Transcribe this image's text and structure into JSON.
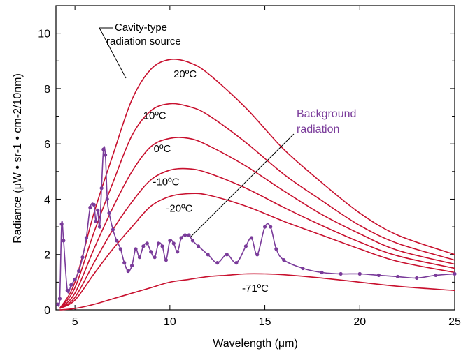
{
  "chart_data": {
    "type": "line",
    "xlabel": "Wavelength (μm)",
    "ylabel": "Radiance (μW • sr-1 • cm-2/10nm)",
    "xlim": [
      4,
      25
    ],
    "ylim": [
      0,
      11
    ],
    "xticks": [
      5,
      10,
      15,
      20,
      25
    ],
    "yticks": [
      0,
      2,
      4,
      6,
      8,
      10
    ],
    "xtick_labels": [
      "5",
      "10",
      "15",
      "20",
      "25"
    ],
    "ytick_labels": [
      "0",
      "2",
      "4",
      "6",
      "8",
      "10"
    ],
    "grid": false,
    "colors": {
      "cavity": "#c8102e",
      "background": "#7a3b9a"
    },
    "annotations": {
      "cavity_source": [
        "Cavity-type",
        "radiation source"
      ],
      "background": [
        "Background",
        "radiation"
      ]
    },
    "series": [
      {
        "label": "20ºC",
        "x": [
          4.2,
          5,
          6,
          7,
          8,
          9,
          10,
          11,
          12,
          14,
          16,
          18,
          20,
          22,
          25
        ],
        "y": [
          0.05,
          1.0,
          3.5,
          5.6,
          7.6,
          8.7,
          9.05,
          8.95,
          8.55,
          7.3,
          5.8,
          4.6,
          3.5,
          2.7,
          2.0
        ]
      },
      {
        "label": "10ºC",
        "x": [
          4.2,
          5,
          6,
          7,
          8,
          9,
          10,
          11,
          12,
          14,
          16,
          18,
          20,
          22,
          25
        ],
        "y": [
          0.05,
          0.8,
          2.8,
          4.6,
          6.3,
          7.2,
          7.45,
          7.35,
          7.05,
          6.05,
          4.9,
          3.95,
          3.05,
          2.4,
          1.8
        ]
      },
      {
        "label": "0ºC",
        "x": [
          4.2,
          5,
          6,
          7,
          8,
          9,
          10,
          11,
          12,
          14,
          16,
          18,
          20,
          22,
          25
        ],
        "y": [
          0.05,
          0.6,
          2.2,
          3.7,
          5.0,
          5.9,
          6.2,
          6.2,
          5.95,
          5.2,
          4.3,
          3.45,
          2.75,
          2.15,
          1.65
        ]
      },
      {
        "label": "-10ºC",
        "x": [
          4.2,
          5,
          6,
          7,
          8,
          9,
          10,
          11,
          12,
          14,
          16,
          18,
          20,
          22,
          25
        ],
        "y": [
          0.05,
          0.45,
          1.7,
          2.9,
          3.9,
          4.7,
          5.05,
          5.1,
          4.95,
          4.4,
          3.7,
          3.05,
          2.45,
          1.95,
          1.5
        ]
      },
      {
        "label": "-20ºC",
        "x": [
          4.2,
          5,
          6,
          7,
          8,
          9,
          10,
          11,
          12,
          14,
          16,
          18,
          20,
          22,
          25
        ],
        "y": [
          0.05,
          0.35,
          1.3,
          2.2,
          3.0,
          3.75,
          4.1,
          4.2,
          4.15,
          3.75,
          3.2,
          2.7,
          2.2,
          1.75,
          1.35
        ]
      },
      {
        "label": "-71ºC",
        "x": [
          4.2,
          5,
          6,
          7,
          8,
          9,
          10,
          11,
          12,
          13,
          14,
          15,
          16,
          18,
          20,
          22,
          25
        ],
        "y": [
          0.0,
          0.05,
          0.2,
          0.4,
          0.6,
          0.8,
          1.0,
          1.1,
          1.2,
          1.25,
          1.3,
          1.3,
          1.27,
          1.15,
          1.0,
          0.85,
          0.7
        ]
      },
      {
        "label": "Background radiation",
        "x": [
          4.1,
          4.2,
          4.3,
          4.4,
          4.6,
          4.8,
          5.0,
          5.2,
          5.4,
          5.6,
          5.8,
          6.0,
          6.1,
          6.2,
          6.3,
          6.4,
          6.5,
          6.6,
          6.7,
          6.8,
          7.0,
          7.2,
          7.4,
          7.6,
          7.8,
          8.0,
          8.2,
          8.4,
          8.6,
          8.8,
          9.0,
          9.2,
          9.4,
          9.6,
          9.8,
          10.0,
          10.2,
          10.4,
          10.6,
          10.8,
          11.0,
          11.2,
          11.5,
          12.0,
          12.5,
          13.0,
          13.5,
          14.0,
          14.3,
          14.6,
          15.0,
          15.3,
          15.6,
          16.0,
          17.0,
          18.0,
          19.0,
          20.0,
          21.0,
          22.0,
          23.0,
          24.0,
          25.0
        ],
        "y": [
          0.2,
          0.4,
          3.1,
          2.5,
          0.7,
          0.9,
          1.1,
          1.4,
          1.9,
          2.6,
          3.7,
          3.8,
          3.2,
          3.6,
          3.0,
          4.4,
          5.8,
          5.6,
          4.0,
          3.5,
          2.9,
          2.5,
          2.2,
          1.7,
          1.4,
          1.6,
          2.2,
          1.9,
          2.3,
          2.4,
          2.1,
          1.9,
          2.4,
          2.3,
          1.8,
          2.5,
          2.4,
          2.1,
          2.6,
          2.7,
          2.7,
          2.5,
          2.3,
          2.0,
          1.7,
          2.0,
          1.7,
          2.3,
          2.6,
          2.0,
          3.0,
          3.0,
          2.2,
          1.8,
          1.5,
          1.35,
          1.3,
          1.3,
          1.25,
          1.2,
          1.15,
          1.25,
          1.3
        ]
      }
    ]
  }
}
